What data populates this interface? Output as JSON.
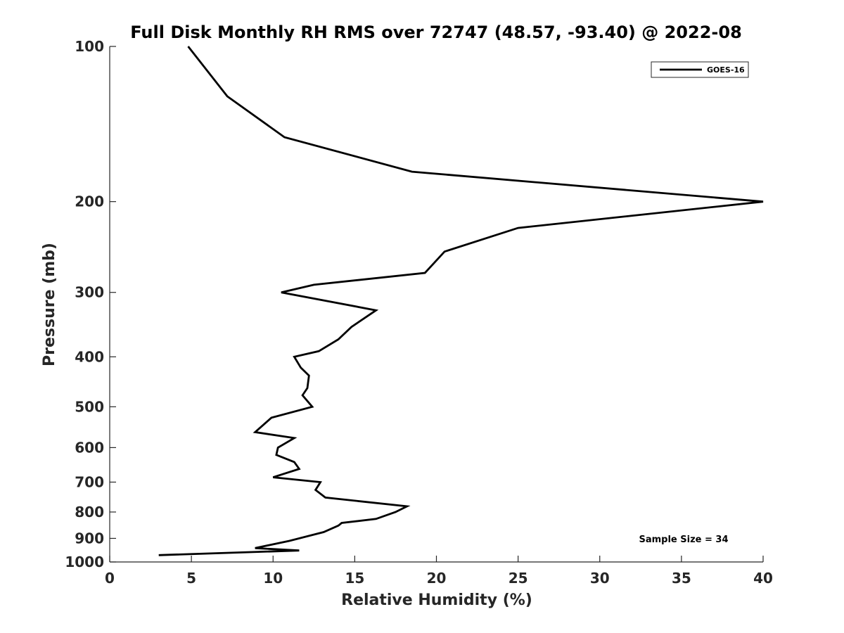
{
  "chart_data": {
    "type": "line",
    "title": "Full Disk Monthly RH RMS over 72747 (48.57, -93.40) @ 2022-08",
    "xlabel": "Relative Humidity (%)",
    "ylabel": "Pressure (mb)",
    "xlim": [
      0,
      40
    ],
    "ylim": [
      100,
      1000
    ],
    "yscale": "log",
    "yreversed": true,
    "x_ticks": [
      0,
      5,
      10,
      15,
      20,
      25,
      30,
      35,
      40
    ],
    "y_ticks": [
      100,
      200,
      300,
      400,
      500,
      600,
      700,
      800,
      900,
      1000
    ],
    "grid": false,
    "legend_location": "top-right",
    "annotation": "Sample Size = 34",
    "series": [
      {
        "name": "GOES-16",
        "color": "#000000",
        "points": [
          [
            4.8,
            100
          ],
          [
            7.2,
            125
          ],
          [
            10.7,
            150
          ],
          [
            18.5,
            175
          ],
          [
            40.0,
            200
          ],
          [
            25.0,
            225
          ],
          [
            20.5,
            250
          ],
          [
            19.3,
            275
          ],
          [
            12.5,
            290
          ],
          [
            10.5,
            300
          ],
          [
            16.3,
            325
          ],
          [
            14.8,
            350
          ],
          [
            14.0,
            370
          ],
          [
            12.8,
            390
          ],
          [
            11.3,
            400
          ],
          [
            11.7,
            420
          ],
          [
            12.2,
            435
          ],
          [
            12.1,
            460
          ],
          [
            11.8,
            475
          ],
          [
            12.4,
            500
          ],
          [
            9.9,
            525
          ],
          [
            8.9,
            560
          ],
          [
            11.3,
            575
          ],
          [
            10.3,
            600
          ],
          [
            10.2,
            620
          ],
          [
            11.3,
            640
          ],
          [
            11.6,
            660
          ],
          [
            10.0,
            685
          ],
          [
            12.9,
            700
          ],
          [
            12.6,
            725
          ],
          [
            13.2,
            750
          ],
          [
            18.2,
            780
          ],
          [
            17.5,
            800
          ],
          [
            16.3,
            825
          ],
          [
            14.2,
            840
          ],
          [
            14.0,
            850
          ],
          [
            13.1,
            875
          ],
          [
            11.0,
            910
          ],
          [
            8.9,
            940
          ],
          [
            11.6,
            950
          ],
          [
            3.0,
            970
          ]
        ]
      }
    ]
  }
}
